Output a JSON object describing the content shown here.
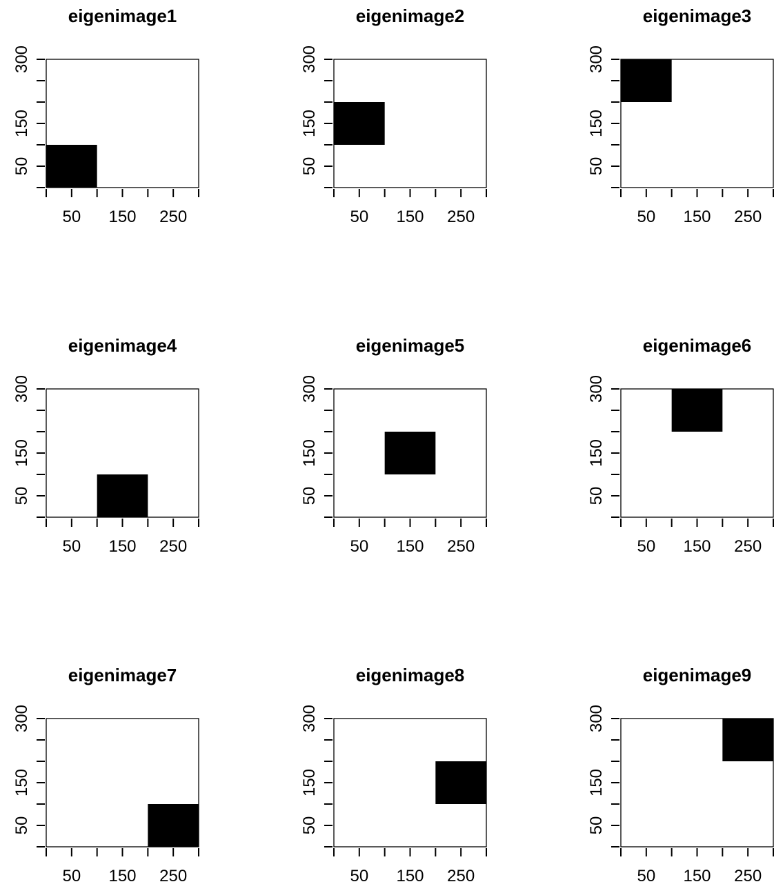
{
  "chart_data": [
    {
      "type": "heatmap",
      "title": "eigenimage1",
      "xlim": [
        0,
        300
      ],
      "ylim": [
        0,
        300
      ],
      "x_ticks": [
        0,
        50,
        100,
        150,
        200,
        250,
        300
      ],
      "x_tick_labels": [
        "50",
        "150",
        "250"
      ],
      "y_ticks": [
        0,
        50,
        100,
        150,
        200,
        250,
        300
      ],
      "y_tick_labels": [
        "50",
        "150",
        "300"
      ],
      "filled_cells": [
        {
          "x": [
            0,
            100
          ],
          "y": [
            0,
            100
          ],
          "color": "#000000"
        }
      ]
    },
    {
      "type": "heatmap",
      "title": "eigenimage2",
      "xlim": [
        0,
        300
      ],
      "ylim": [
        0,
        300
      ],
      "x_ticks": [
        0,
        50,
        100,
        150,
        200,
        250,
        300
      ],
      "x_tick_labels": [
        "50",
        "150",
        "250"
      ],
      "y_ticks": [
        0,
        50,
        100,
        150,
        200,
        250,
        300
      ],
      "y_tick_labels": [
        "50",
        "150",
        "300"
      ],
      "filled_cells": [
        {
          "x": [
            0,
            100
          ],
          "y": [
            100,
            200
          ],
          "color": "#000000"
        }
      ]
    },
    {
      "type": "heatmap",
      "title": "eigenimage3",
      "xlim": [
        0,
        300
      ],
      "ylim": [
        0,
        300
      ],
      "x_ticks": [
        0,
        50,
        100,
        150,
        200,
        250,
        300
      ],
      "x_tick_labels": [
        "50",
        "150",
        "250"
      ],
      "y_ticks": [
        0,
        50,
        100,
        150,
        200,
        250,
        300
      ],
      "y_tick_labels": [
        "50",
        "150",
        "300"
      ],
      "filled_cells": [
        {
          "x": [
            0,
            100
          ],
          "y": [
            200,
            300
          ],
          "color": "#000000"
        }
      ]
    },
    {
      "type": "heatmap",
      "title": "eigenimage4",
      "xlim": [
        0,
        300
      ],
      "ylim": [
        0,
        300
      ],
      "x_ticks": [
        0,
        50,
        100,
        150,
        200,
        250,
        300
      ],
      "x_tick_labels": [
        "50",
        "150",
        "250"
      ],
      "y_ticks": [
        0,
        50,
        100,
        150,
        200,
        250,
        300
      ],
      "y_tick_labels": [
        "50",
        "150",
        "300"
      ],
      "filled_cells": [
        {
          "x": [
            100,
            200
          ],
          "y": [
            0,
            100
          ],
          "color": "#000000"
        }
      ]
    },
    {
      "type": "heatmap",
      "title": "eigenimage5",
      "xlim": [
        0,
        300
      ],
      "ylim": [
        0,
        300
      ],
      "x_ticks": [
        0,
        50,
        100,
        150,
        200,
        250,
        300
      ],
      "x_tick_labels": [
        "50",
        "150",
        "250"
      ],
      "y_ticks": [
        0,
        50,
        100,
        150,
        200,
        250,
        300
      ],
      "y_tick_labels": [
        "50",
        "150",
        "300"
      ],
      "filled_cells": [
        {
          "x": [
            100,
            200
          ],
          "y": [
            100,
            200
          ],
          "color": "#000000"
        }
      ]
    },
    {
      "type": "heatmap",
      "title": "eigenimage6",
      "xlim": [
        0,
        300
      ],
      "ylim": [
        0,
        300
      ],
      "x_ticks": [
        0,
        50,
        100,
        150,
        200,
        250,
        300
      ],
      "x_tick_labels": [
        "50",
        "150",
        "250"
      ],
      "y_ticks": [
        0,
        50,
        100,
        150,
        200,
        250,
        300
      ],
      "y_tick_labels": [
        "50",
        "150",
        "300"
      ],
      "filled_cells": [
        {
          "x": [
            100,
            200
          ],
          "y": [
            200,
            300
          ],
          "color": "#000000"
        }
      ]
    },
    {
      "type": "heatmap",
      "title": "eigenimage7",
      "xlim": [
        0,
        300
      ],
      "ylim": [
        0,
        300
      ],
      "x_ticks": [
        0,
        50,
        100,
        150,
        200,
        250,
        300
      ],
      "x_tick_labels": [
        "50",
        "150",
        "250"
      ],
      "y_ticks": [
        0,
        50,
        100,
        150,
        200,
        250,
        300
      ],
      "y_tick_labels": [
        "50",
        "150",
        "300"
      ],
      "filled_cells": [
        {
          "x": [
            200,
            300
          ],
          "y": [
            0,
            100
          ],
          "color": "#000000"
        }
      ]
    },
    {
      "type": "heatmap",
      "title": "eigenimage8",
      "xlim": [
        0,
        300
      ],
      "ylim": [
        0,
        300
      ],
      "x_ticks": [
        0,
        50,
        100,
        150,
        200,
        250,
        300
      ],
      "x_tick_labels": [
        "50",
        "150",
        "250"
      ],
      "y_ticks": [
        0,
        50,
        100,
        150,
        200,
        250,
        300
      ],
      "y_tick_labels": [
        "50",
        "150",
        "300"
      ],
      "filled_cells": [
        {
          "x": [
            200,
            300
          ],
          "y": [
            100,
            200
          ],
          "color": "#000000"
        }
      ]
    },
    {
      "type": "heatmap",
      "title": "eigenimage9",
      "xlim": [
        0,
        300
      ],
      "ylim": [
        0,
        300
      ],
      "x_ticks": [
        0,
        50,
        100,
        150,
        200,
        250,
        300
      ],
      "x_tick_labels": [
        "50",
        "150",
        "250"
      ],
      "y_ticks": [
        0,
        50,
        100,
        150,
        200,
        250,
        300
      ],
      "y_tick_labels": [
        "50",
        "150",
        "300"
      ],
      "filled_cells": [
        {
          "x": [
            200,
            300
          ],
          "y": [
            200,
            300
          ],
          "color": "#000000"
        }
      ]
    }
  ]
}
